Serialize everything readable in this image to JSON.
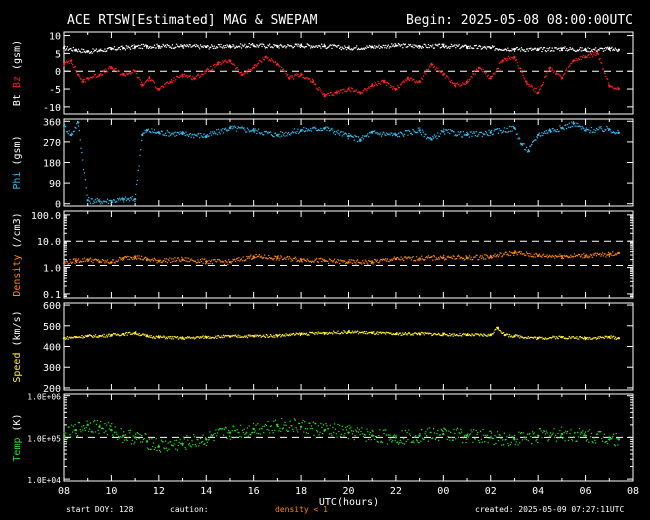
{
  "header": {
    "title": "ACE RTSW[Estimated] MAG & SWEPAM",
    "begin": "Begin: 2025-05-08 08:00:00UTC"
  },
  "xaxis": {
    "label": "UTC(hours)",
    "ticks": [
      "08",
      "10",
      "12",
      "14",
      "16",
      "18",
      "20",
      "22",
      "00",
      "02",
      "04",
      "06",
      "08"
    ]
  },
  "footer": {
    "start_doy": "start DOY: 128",
    "caution": "caution:",
    "density_note": "density < 1",
    "created": "created: 2025-05-09 07:27:11UTC"
  },
  "colors": {
    "bt": "#ffffff",
    "bz": "#ff2020",
    "phi": "#33bbee",
    "density": "#ff8800",
    "speed": "#ffee22",
    "temp": "#22dd22"
  },
  "chart_data": [
    {
      "type": "scatter",
      "ylabel_parts": [
        "Bt",
        "Bz",
        "(gsm)"
      ],
      "ylim": [
        -12,
        11
      ],
      "yticks": [
        "10",
        "5",
        "0",
        "-5",
        "-10"
      ],
      "ytick_values": [
        10,
        5,
        0,
        -5,
        -10
      ],
      "dashed_lines": [
        0
      ],
      "series": [
        {
          "key": "bt",
          "x": [
            0,
            0.5,
            1,
            1.5,
            2,
            2.5,
            3,
            3.5,
            4,
            5,
            6,
            7,
            8,
            9,
            10,
            11,
            12,
            13,
            14,
            15,
            16,
            17,
            18,
            19,
            20,
            21,
            22,
            23,
            23.4
          ],
          "y": [
            6.5,
            6,
            5.5,
            5.8,
            6.2,
            6.5,
            6.8,
            7,
            7,
            7,
            6.8,
            7,
            7.2,
            7,
            7.2,
            7,
            6.5,
            6.8,
            7.2,
            7,
            7,
            6.8,
            6.5,
            6.2,
            6,
            6.3,
            6,
            6.2,
            6
          ]
        },
        {
          "key": "bz",
          "x": [
            0,
            0.3,
            0.6,
            0.8,
            1,
            1.5,
            2,
            2.5,
            3,
            3.3,
            3.6,
            4,
            4.5,
            5,
            5.5,
            6,
            6.5,
            7,
            7.5,
            8,
            8.5,
            9,
            9.5,
            10,
            10.5,
            11,
            11.5,
            12,
            12.5,
            13,
            13.5,
            14,
            14.5,
            15,
            15.5,
            16,
            16.5,
            17,
            17.5,
            18,
            18.5,
            19,
            19.5,
            20,
            20.5,
            21,
            21.5,
            22,
            22.5,
            23,
            23.4
          ],
          "y": [
            2,
            3,
            -1,
            -3,
            -2,
            -1,
            1,
            -1,
            0,
            -4,
            -2,
            -5,
            -3,
            -1,
            -2,
            0,
            2,
            3,
            -1,
            1,
            4,
            2,
            -2,
            -1,
            -3,
            -7,
            -6,
            -5,
            -6,
            -4,
            -3,
            -5,
            -2,
            -3,
            2,
            -1,
            -4,
            -3,
            1,
            -2,
            3,
            4,
            -3,
            -6,
            1,
            -2,
            3,
            4,
            5,
            -4,
            -5
          ]
        }
      ]
    },
    {
      "type": "scatter",
      "ylabel_parts": [
        "Phi",
        "(gsm)"
      ],
      "ylim": [
        -10,
        370
      ],
      "yticks": [
        "360",
        "270",
        "180",
        "90",
        "0"
      ],
      "ytick_values": [
        360,
        270,
        180,
        90,
        0
      ],
      "series": [
        {
          "key": "phi",
          "x": [
            0,
            0.3,
            0.6,
            1,
            1.5,
            2,
            2.5,
            3,
            3.3,
            3.5,
            4,
            5,
            6,
            7,
            8,
            9,
            10,
            11,
            12,
            12.5,
            13,
            14,
            15,
            15.5,
            16,
            17,
            18,
            19,
            19.3,
            19.6,
            20,
            20.5,
            21,
            21.5,
            22,
            23,
            23.4
          ],
          "y": [
            340,
            300,
            355,
            15,
            10,
            12,
            18,
            20,
            300,
            320,
            310,
            305,
            295,
            330,
            320,
            300,
            320,
            330,
            295,
            280,
            310,
            300,
            320,
            280,
            315,
            300,
            310,
            330,
            260,
            230,
            300,
            320,
            330,
            350,
            320,
            325,
            310
          ]
        }
      ]
    },
    {
      "type": "scatter",
      "ylabel_parts": [
        "Density",
        "(/cm3)"
      ],
      "yscale": "log",
      "ylim": [
        0.07,
        140
      ],
      "yticks": [
        "100.0",
        "10.0",
        "1.0",
        "0.1"
      ],
      "ytick_values": [
        100,
        10,
        1,
        0.1
      ],
      "dashed_lines": [
        10,
        1.2
      ],
      "series": [
        {
          "key": "density",
          "x": [
            0,
            0.5,
            1,
            1.5,
            2,
            2.5,
            3,
            3.5,
            4,
            5,
            6,
            7,
            8,
            9,
            10,
            11,
            12,
            13,
            14,
            15,
            16,
            17,
            18,
            19,
            20,
            21,
            22,
            23,
            23.4
          ],
          "y": [
            1.5,
            1.8,
            2,
            1.7,
            1.6,
            2.2,
            2.6,
            2,
            1.8,
            2,
            1.7,
            1.6,
            2.6,
            2.3,
            2,
            1.8,
            1.6,
            1.6,
            2.1,
            2.2,
            2.4,
            2.3,
            2.6,
            3.6,
            2.8,
            2.7,
            2.8,
            3.1,
            3.6
          ]
        }
      ]
    },
    {
      "type": "scatter",
      "ylabel_parts": [
        "Speed",
        "(km/s)"
      ],
      "ylim": [
        190,
        610
      ],
      "yticks": [
        "600",
        "500",
        "400",
        "300",
        "200"
      ],
      "ytick_values": [
        600,
        500,
        400,
        300,
        200
      ],
      "series": [
        {
          "key": "speed",
          "x": [
            0,
            0.5,
            1,
            1.5,
            2,
            2.5,
            3,
            3.5,
            4,
            5,
            6,
            7,
            8,
            9,
            10,
            11,
            12,
            13,
            14,
            15,
            16,
            17,
            18,
            18.3,
            18.6,
            19,
            20,
            21,
            22,
            23,
            23.4
          ],
          "y": [
            440,
            445,
            450,
            450,
            455,
            460,
            465,
            450,
            445,
            440,
            445,
            448,
            450,
            452,
            460,
            465,
            470,
            465,
            460,
            462,
            458,
            455,
            455,
            490,
            455,
            450,
            440,
            445,
            440,
            445,
            440
          ]
        }
      ]
    },
    {
      "type": "scatter",
      "ylabel_parts": [
        "Temp",
        "(K)"
      ],
      "yscale": "log",
      "ylim": [
        9000,
        1100000
      ],
      "yticks": [
        "1.0E+06",
        "1.0E+05",
        "1.0E+04"
      ],
      "ytick_values": [
        1000000,
        100000,
        10000
      ],
      "dashed_lines": [
        100000
      ],
      "series": [
        {
          "key": "temp",
          "x": [
            0,
            0.5,
            1,
            1.5,
            2,
            2.5,
            3,
            3.5,
            4,
            5,
            6,
            7,
            8,
            9,
            10,
            11,
            12,
            13,
            14,
            15,
            16,
            17,
            18,
            19,
            20,
            21,
            22,
            23,
            23.4
          ],
          "y": [
            100000,
            150000,
            200000,
            180000,
            150000,
            110000,
            100000,
            80000,
            60000,
            70000,
            90000,
            130000,
            160000,
            200000,
            180000,
            150000,
            130000,
            110000,
            100000,
            110000,
            120000,
            110000,
            100000,
            90000,
            110000,
            120000,
            110000,
            100000,
            90000
          ]
        }
      ]
    }
  ]
}
